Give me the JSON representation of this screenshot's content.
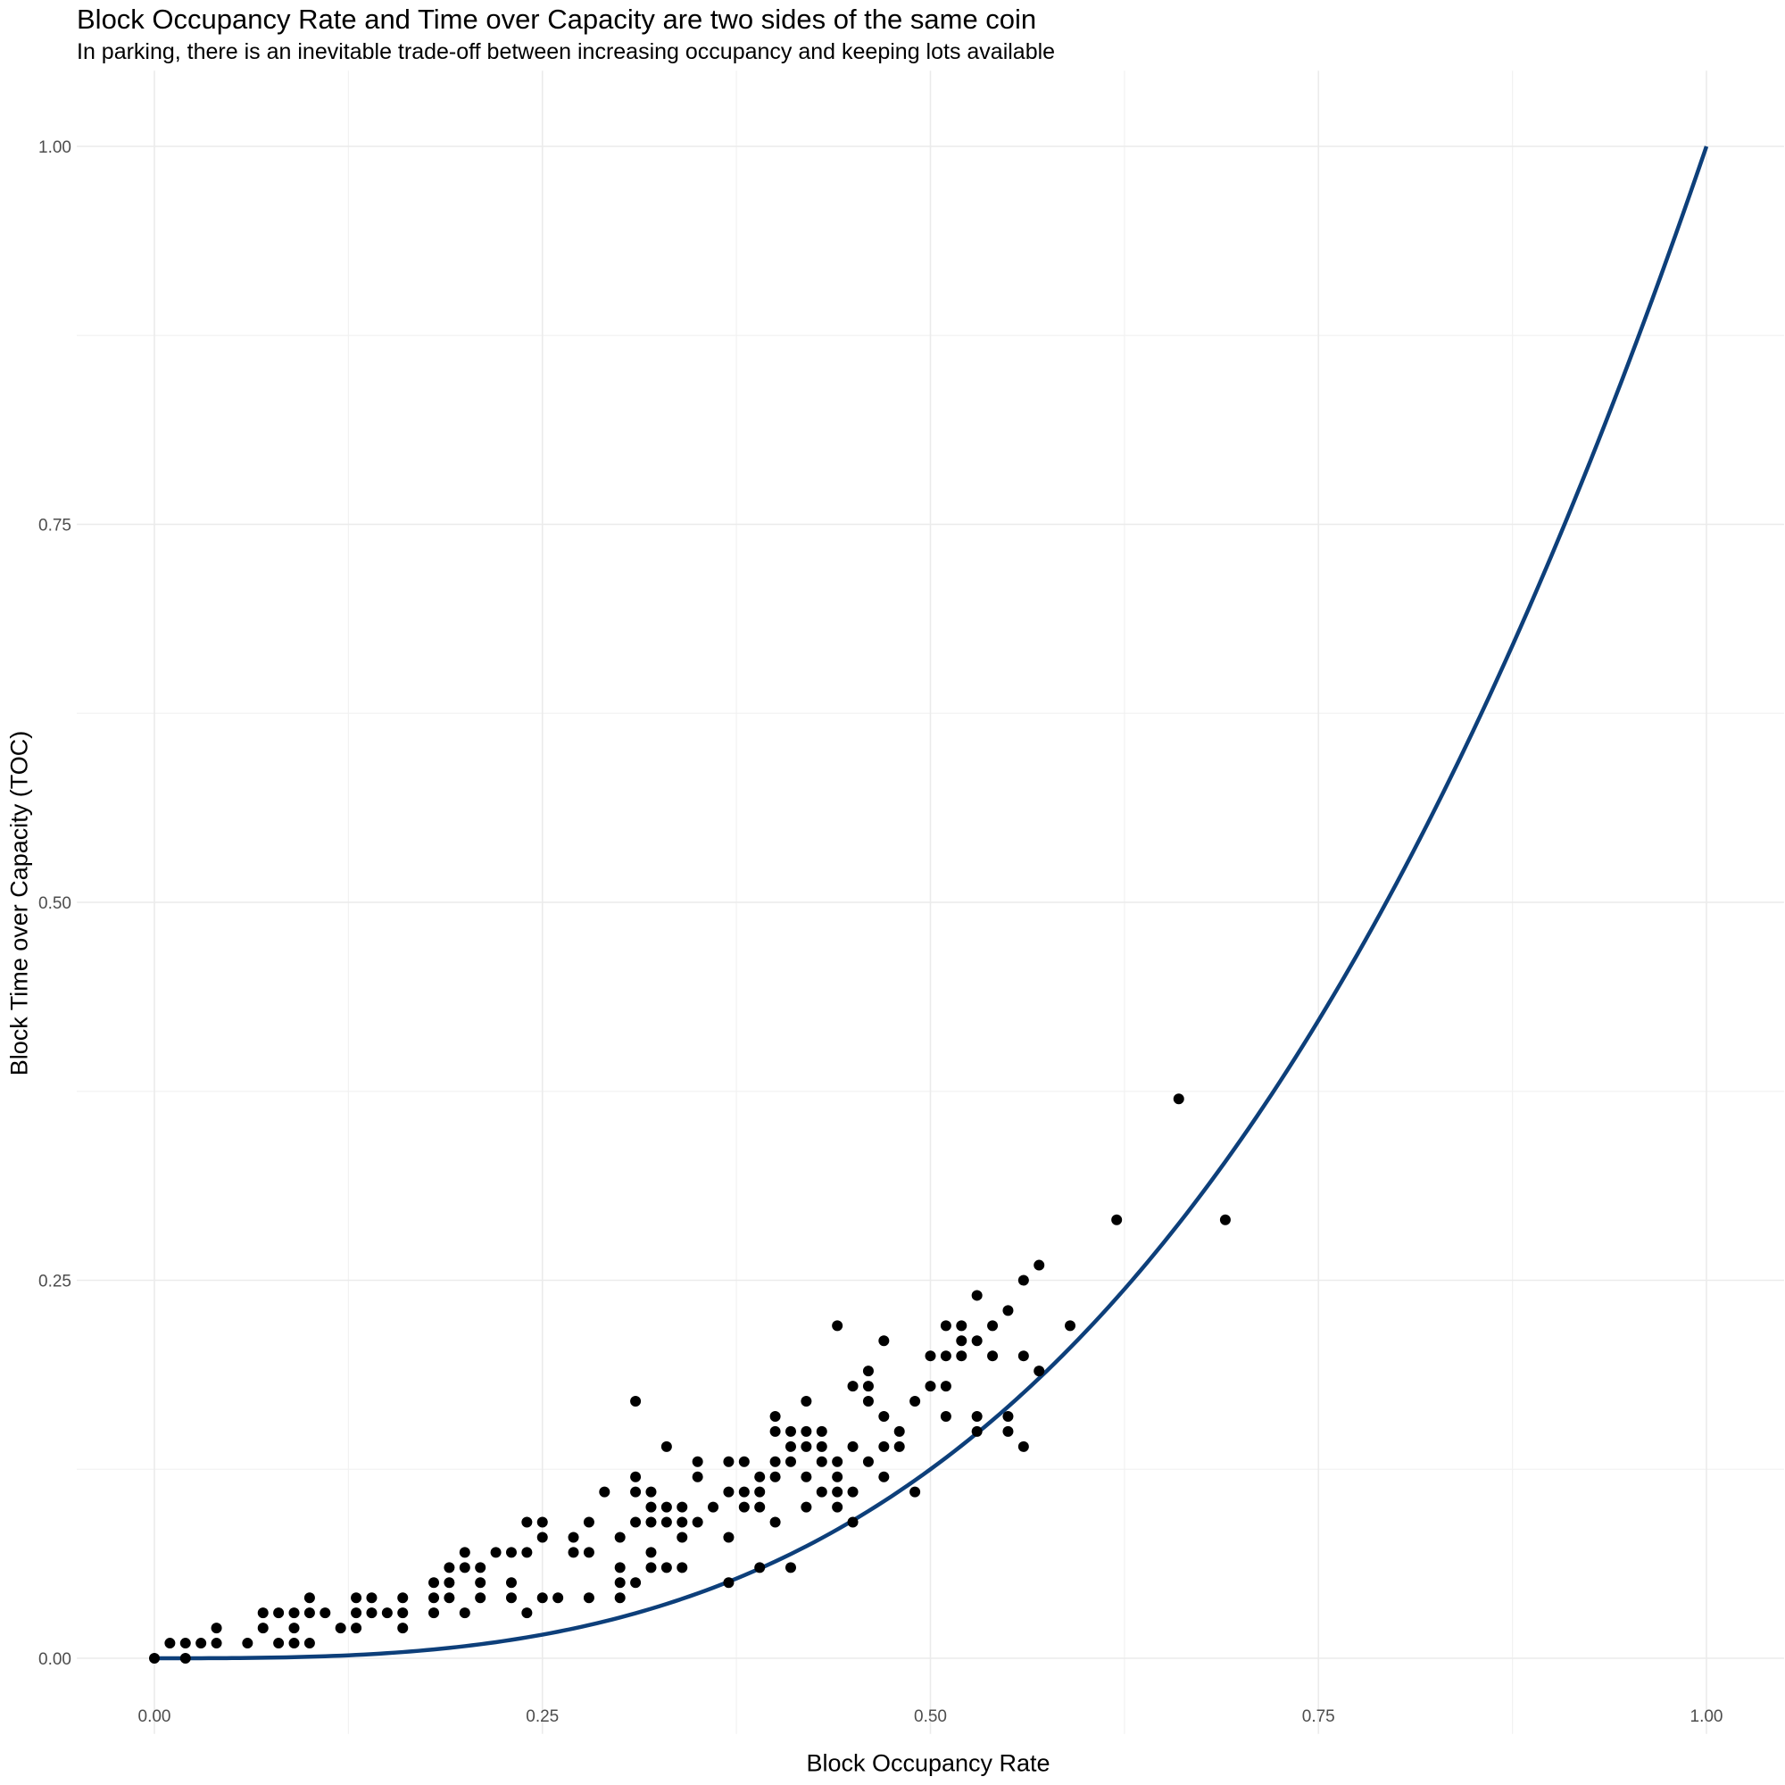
{
  "title": "Block Occupancy Rate and Time over Capacity are two sides of the same coin",
  "subtitle": "In parking, there is an inevitable trade-off between increasing occupancy and keeping lots available",
  "chart_data": {
    "type": "scatter",
    "xlabel": "Block Occupancy Rate",
    "ylabel": "Block Time over Capacity (TOC)",
    "xlim": [
      -0.05,
      1.05
    ],
    "ylim": [
      -0.05,
      1.05
    ],
    "x_ticks": [
      "0.00",
      "0.25",
      "0.50",
      "0.75",
      "1.00"
    ],
    "y_ticks": [
      "0.00",
      "0.25",
      "0.50",
      "0.75",
      "1.00"
    ],
    "grid": true,
    "legend": "none",
    "curve": {
      "name": "",
      "color": "#0d3f7a",
      "formula": "y = x^3",
      "x_range": [
        0,
        1
      ]
    },
    "point_color": "#000000",
    "points": [
      [
        0.0,
        0.0
      ],
      [
        0.01,
        0.01
      ],
      [
        0.02,
        0.01
      ],
      [
        0.02,
        0.0
      ],
      [
        0.03,
        0.01
      ],
      [
        0.04,
        0.01
      ],
      [
        0.04,
        0.02
      ],
      [
        0.06,
        0.01
      ],
      [
        0.07,
        0.02
      ],
      [
        0.07,
        0.03
      ],
      [
        0.08,
        0.01
      ],
      [
        0.08,
        0.03
      ],
      [
        0.09,
        0.01
      ],
      [
        0.09,
        0.02
      ],
      [
        0.09,
        0.03
      ],
      [
        0.1,
        0.01
      ],
      [
        0.1,
        0.03
      ],
      [
        0.1,
        0.04
      ],
      [
        0.11,
        0.03
      ],
      [
        0.12,
        0.02
      ],
      [
        0.13,
        0.02
      ],
      [
        0.13,
        0.03
      ],
      [
        0.13,
        0.04
      ],
      [
        0.14,
        0.03
      ],
      [
        0.14,
        0.04
      ],
      [
        0.15,
        0.03
      ],
      [
        0.16,
        0.02
      ],
      [
        0.16,
        0.03
      ],
      [
        0.16,
        0.04
      ],
      [
        0.18,
        0.03
      ],
      [
        0.18,
        0.04
      ],
      [
        0.18,
        0.05
      ],
      [
        0.19,
        0.04
      ],
      [
        0.19,
        0.05
      ],
      [
        0.19,
        0.06
      ],
      [
        0.2,
        0.03
      ],
      [
        0.2,
        0.06
      ],
      [
        0.2,
        0.07
      ],
      [
        0.21,
        0.04
      ],
      [
        0.21,
        0.05
      ],
      [
        0.21,
        0.06
      ],
      [
        0.22,
        0.07
      ],
      [
        0.23,
        0.04
      ],
      [
        0.23,
        0.05
      ],
      [
        0.23,
        0.07
      ],
      [
        0.24,
        0.03
      ],
      [
        0.24,
        0.07
      ],
      [
        0.24,
        0.09
      ],
      [
        0.25,
        0.04
      ],
      [
        0.25,
        0.08
      ],
      [
        0.25,
        0.09
      ],
      [
        0.26,
        0.04
      ],
      [
        0.27,
        0.07
      ],
      [
        0.27,
        0.08
      ],
      [
        0.28,
        0.04
      ],
      [
        0.28,
        0.07
      ],
      [
        0.28,
        0.09
      ],
      [
        0.29,
        0.11
      ],
      [
        0.3,
        0.04
      ],
      [
        0.3,
        0.05
      ],
      [
        0.3,
        0.06
      ],
      [
        0.3,
        0.08
      ],
      [
        0.31,
        0.05
      ],
      [
        0.31,
        0.09
      ],
      [
        0.31,
        0.11
      ],
      [
        0.31,
        0.12
      ],
      [
        0.31,
        0.17
      ],
      [
        0.32,
        0.06
      ],
      [
        0.32,
        0.07
      ],
      [
        0.32,
        0.09
      ],
      [
        0.32,
        0.1
      ],
      [
        0.32,
        0.11
      ],
      [
        0.33,
        0.06
      ],
      [
        0.33,
        0.09
      ],
      [
        0.33,
        0.1
      ],
      [
        0.33,
        0.14
      ],
      [
        0.34,
        0.06
      ],
      [
        0.34,
        0.08
      ],
      [
        0.34,
        0.09
      ],
      [
        0.34,
        0.1
      ],
      [
        0.35,
        0.09
      ],
      [
        0.35,
        0.12
      ],
      [
        0.35,
        0.13
      ],
      [
        0.36,
        0.1
      ],
      [
        0.37,
        0.05
      ],
      [
        0.37,
        0.08
      ],
      [
        0.37,
        0.11
      ],
      [
        0.37,
        0.13
      ],
      [
        0.38,
        0.11
      ],
      [
        0.38,
        0.13
      ],
      [
        0.38,
        0.1
      ],
      [
        0.39,
        0.06
      ],
      [
        0.39,
        0.1
      ],
      [
        0.39,
        0.11
      ],
      [
        0.39,
        0.12
      ],
      [
        0.4,
        0.09
      ],
      [
        0.4,
        0.12
      ],
      [
        0.4,
        0.13
      ],
      [
        0.4,
        0.15
      ],
      [
        0.4,
        0.16
      ],
      [
        0.41,
        0.06
      ],
      [
        0.41,
        0.13
      ],
      [
        0.41,
        0.14
      ],
      [
        0.41,
        0.15
      ],
      [
        0.42,
        0.1
      ],
      [
        0.42,
        0.12
      ],
      [
        0.42,
        0.14
      ],
      [
        0.42,
        0.15
      ],
      [
        0.42,
        0.17
      ],
      [
        0.43,
        0.11
      ],
      [
        0.43,
        0.13
      ],
      [
        0.43,
        0.14
      ],
      [
        0.43,
        0.15
      ],
      [
        0.44,
        0.1
      ],
      [
        0.44,
        0.11
      ],
      [
        0.44,
        0.12
      ],
      [
        0.44,
        0.13
      ],
      [
        0.44,
        0.22
      ],
      [
        0.45,
        0.09
      ],
      [
        0.45,
        0.11
      ],
      [
        0.45,
        0.14
      ],
      [
        0.45,
        0.18
      ],
      [
        0.46,
        0.13
      ],
      [
        0.46,
        0.17
      ],
      [
        0.46,
        0.18
      ],
      [
        0.46,
        0.19
      ],
      [
        0.47,
        0.12
      ],
      [
        0.47,
        0.14
      ],
      [
        0.47,
        0.16
      ],
      [
        0.47,
        0.21
      ],
      [
        0.48,
        0.14
      ],
      [
        0.48,
        0.15
      ],
      [
        0.49,
        0.11
      ],
      [
        0.49,
        0.17
      ],
      [
        0.5,
        0.18
      ],
      [
        0.5,
        0.2
      ],
      [
        0.51,
        0.16
      ],
      [
        0.51,
        0.18
      ],
      [
        0.51,
        0.2
      ],
      [
        0.51,
        0.22
      ],
      [
        0.52,
        0.2
      ],
      [
        0.52,
        0.21
      ],
      [
        0.52,
        0.22
      ],
      [
        0.53,
        0.15
      ],
      [
        0.53,
        0.16
      ],
      [
        0.53,
        0.21
      ],
      [
        0.53,
        0.24
      ],
      [
        0.54,
        0.2
      ],
      [
        0.54,
        0.22
      ],
      [
        0.55,
        0.15
      ],
      [
        0.55,
        0.16
      ],
      [
        0.55,
        0.23
      ],
      [
        0.56,
        0.14
      ],
      [
        0.56,
        0.2
      ],
      [
        0.56,
        0.25
      ],
      [
        0.57,
        0.19
      ],
      [
        0.57,
        0.26
      ],
      [
        0.59,
        0.22
      ],
      [
        0.62,
        0.29
      ],
      [
        0.66,
        0.37
      ],
      [
        0.69,
        0.29
      ]
    ]
  }
}
